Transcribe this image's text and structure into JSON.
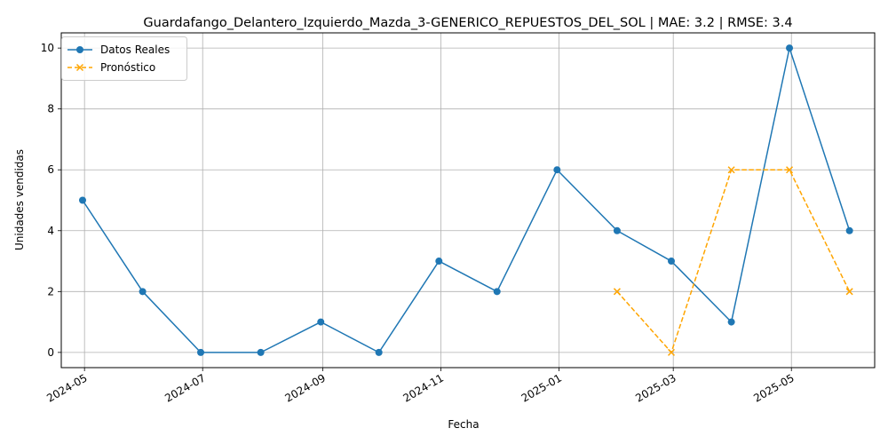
{
  "chart_data": {
    "type": "line",
    "title": "Guardafango_Delantero_Izquierdo_Mazda_3-GENERICO_REPUESTOS_DEL_SOL | MAE: 3.2 | RMSE: 3.4",
    "xlabel": "Fecha",
    "ylabel": "Unidades vendidas",
    "ylim": [
      -0.5,
      10.5
    ],
    "xlim": [
      "2024-04-19",
      "2025-06-13"
    ],
    "grid": true,
    "legend_position": "top-left",
    "x_ticks": [
      "2024-05-01",
      "2024-07-01",
      "2024-09-01",
      "2024-11-01",
      "2025-01-01",
      "2025-03-01",
      "2025-05-01"
    ],
    "x_tick_labels": [
      "2024-05",
      "2024-07",
      "2024-09",
      "2024-11",
      "2025-01",
      "2025-03",
      "2025-05"
    ],
    "y_ticks": [
      0,
      2,
      4,
      6,
      8,
      10
    ],
    "series": [
      {
        "name": "Datos Reales",
        "color": "#1f77b4",
        "style": "solid",
        "marker": "circle",
        "x": [
          "2024-04-30",
          "2024-05-31",
          "2024-06-30",
          "2024-07-31",
          "2024-08-31",
          "2024-09-30",
          "2024-10-31",
          "2024-11-30",
          "2024-12-31",
          "2025-01-31",
          "2025-02-28",
          "2025-03-31",
          "2025-04-30",
          "2025-05-31"
        ],
        "values": [
          5,
          2,
          0,
          0,
          1,
          0,
          3,
          2,
          6,
          4,
          3,
          1,
          10,
          4
        ]
      },
      {
        "name": "Pronóstico",
        "color": "#ffa500",
        "style": "dashed",
        "marker": "x",
        "x": [
          "2025-01-31",
          "2025-02-28",
          "2025-03-31",
          "2025-04-30",
          "2025-05-31"
        ],
        "values": [
          2,
          0,
          6,
          6,
          2
        ]
      }
    ]
  }
}
